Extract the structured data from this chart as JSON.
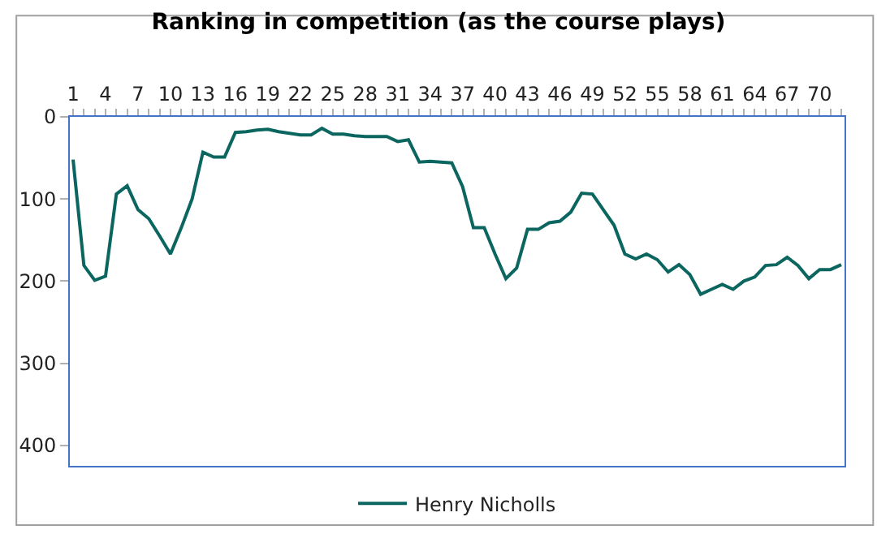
{
  "chart_data": {
    "type": "line",
    "title": "Ranking in competition (as the course plays)",
    "categories": [
      "1",
      null,
      null,
      "4",
      null,
      null,
      "7",
      null,
      null,
      "10",
      null,
      null,
      "13",
      null,
      null,
      "16",
      null,
      null,
      "19",
      null,
      null,
      "22",
      null,
      null,
      "25",
      null,
      null,
      "28",
      null,
      null,
      "31",
      null,
      null,
      "34",
      null,
      null,
      "37",
      null,
      null,
      "40",
      null,
      null,
      "43",
      null,
      null,
      "46",
      null,
      null,
      "49",
      null,
      null,
      "52",
      null,
      null,
      "55",
      null,
      null,
      "58",
      null,
      null,
      "61",
      null,
      null,
      "64",
      null,
      null,
      "67",
      null,
      null,
      "70",
      null,
      null
    ],
    "series": [
      {
        "name": "Henry Nicholls",
        "color": "#0b6660",
        "values": [
          52,
          181,
          199,
          194,
          94,
          84,
          113,
          124,
          145,
          167,
          135,
          100,
          43,
          49,
          49,
          19,
          18,
          16,
          15,
          18,
          20,
          22,
          22,
          14,
          21,
          21,
          23,
          24,
          24,
          24,
          30,
          28,
          55,
          54,
          55,
          56,
          85,
          135,
          135,
          167,
          197,
          184,
          137,
          137,
          129,
          127,
          116,
          93,
          94,
          113,
          132,
          167,
          173,
          167,
          174,
          189,
          180,
          192,
          216,
          210,
          204,
          210,
          200,
          195,
          181,
          180,
          171,
          181,
          197,
          186,
          186,
          180
        ]
      }
    ],
    "ylim": [
      425,
      0
    ],
    "yticks": [
      0,
      100,
      200,
      300,
      400
    ],
    "legend": "bottom",
    "marker": "none",
    "line_style": "solid"
  }
}
